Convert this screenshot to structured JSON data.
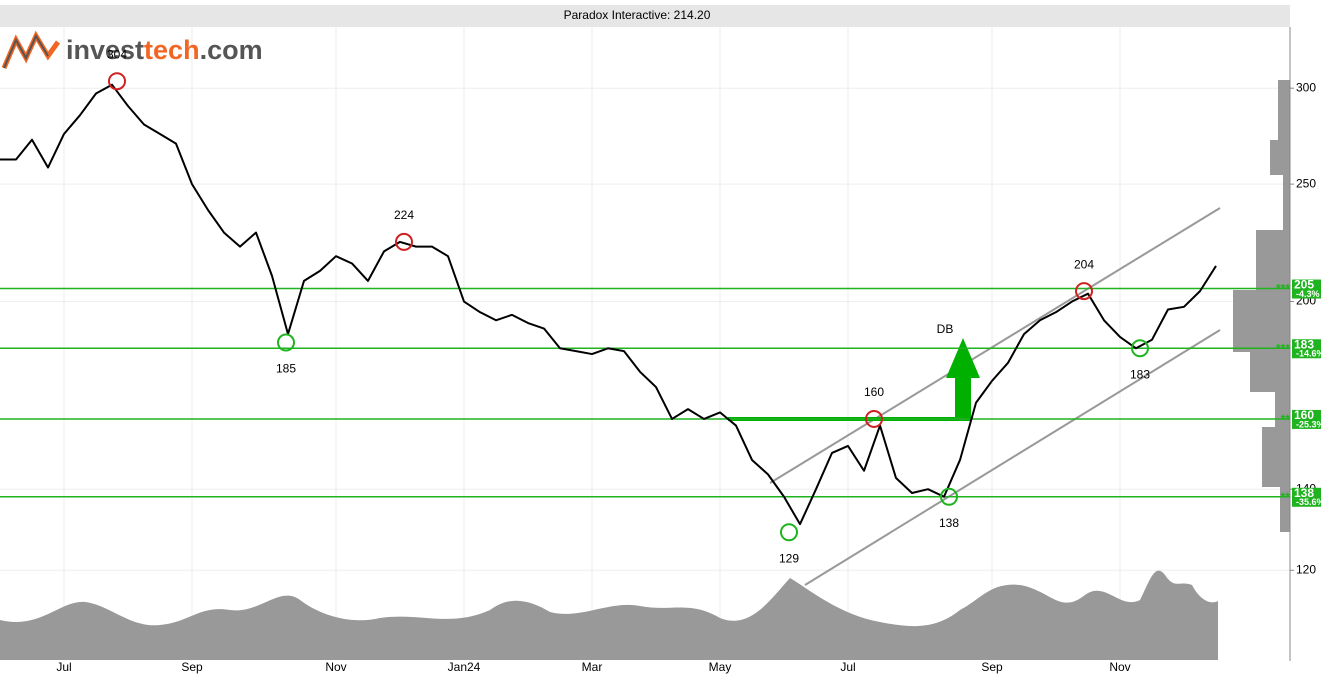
{
  "chart_data": {
    "type": "line",
    "title": "Paradox Interactive: 214.20",
    "logo": [
      "invest",
      "tech",
      ".com"
    ],
    "categories": [
      null,
      null,
      null,
      null,
      "Jul",
      null,
      null,
      null,
      null,
      null,
      null,
      null,
      "Sep",
      null,
      null,
      null,
      null,
      null,
      null,
      null,
      null,
      "Nov",
      null,
      null,
      null,
      null,
      null,
      null,
      null,
      "Jan24",
      null,
      null,
      null,
      null,
      null,
      null,
      null,
      "Mar",
      null,
      null,
      null,
      null,
      null,
      null,
      null,
      "May",
      null,
      null,
      null,
      null,
      null,
      null,
      null,
      "Jul",
      null,
      null,
      null,
      null,
      null,
      null,
      null,
      null,
      "Sep",
      null,
      null,
      null,
      null,
      null,
      null,
      null,
      "Nov",
      null,
      null,
      null,
      null,
      null,
      null
    ],
    "series": [
      {
        "name": "Paradox Interactive",
        "color": "#000000",
        "values": [
          262,
          262,
          272,
          258,
          275,
          285,
          297,
          302,
          290,
          280,
          275,
          270,
          250,
          238,
          228,
          222,
          228,
          210,
          188,
          208,
          212,
          218,
          215,
          208,
          220,
          224,
          222,
          222,
          218,
          200,
          196,
          193,
          195,
          192,
          190,
          183,
          182,
          181,
          183,
          182,
          175,
          170,
          160,
          163,
          160,
          162,
          158,
          148,
          144,
          138,
          131,
          140,
          150,
          152,
          145,
          158,
          143,
          139,
          140,
          138,
          148,
          165,
          172,
          178,
          188,
          193,
          196,
          200,
          203,
          193,
          187,
          183,
          186,
          197,
          198,
          204,
          214
        ]
      }
    ],
    "log": true,
    "ylim": [
      101,
      337
    ],
    "yticks": [
      300,
      250,
      200,
      140,
      120
    ],
    "grid": true,
    "levels": [
      {
        "value": 205,
        "stars": "***",
        "change": "-4.3%"
      },
      {
        "value": 183,
        "stars": "***",
        "change": "-14.6%"
      },
      {
        "value": 160,
        "stars": "**",
        "change": "-25.3%"
      },
      {
        "value": 138,
        "stars": "**",
        "change": "-35.6%"
      }
    ],
    "extremes": [
      {
        "value": 304,
        "kind": "top"
      },
      {
        "value": 224,
        "kind": "top"
      },
      {
        "value": 185,
        "kind": "bottom"
      },
      {
        "value": 129,
        "kind": "bottom"
      },
      {
        "value": 160,
        "kind": "top"
      },
      {
        "value": 138,
        "kind": "bottom"
      },
      {
        "value": 204,
        "kind": "top"
      },
      {
        "value": 183,
        "kind": "bottom"
      }
    ],
    "pattern": "DB"
  }
}
